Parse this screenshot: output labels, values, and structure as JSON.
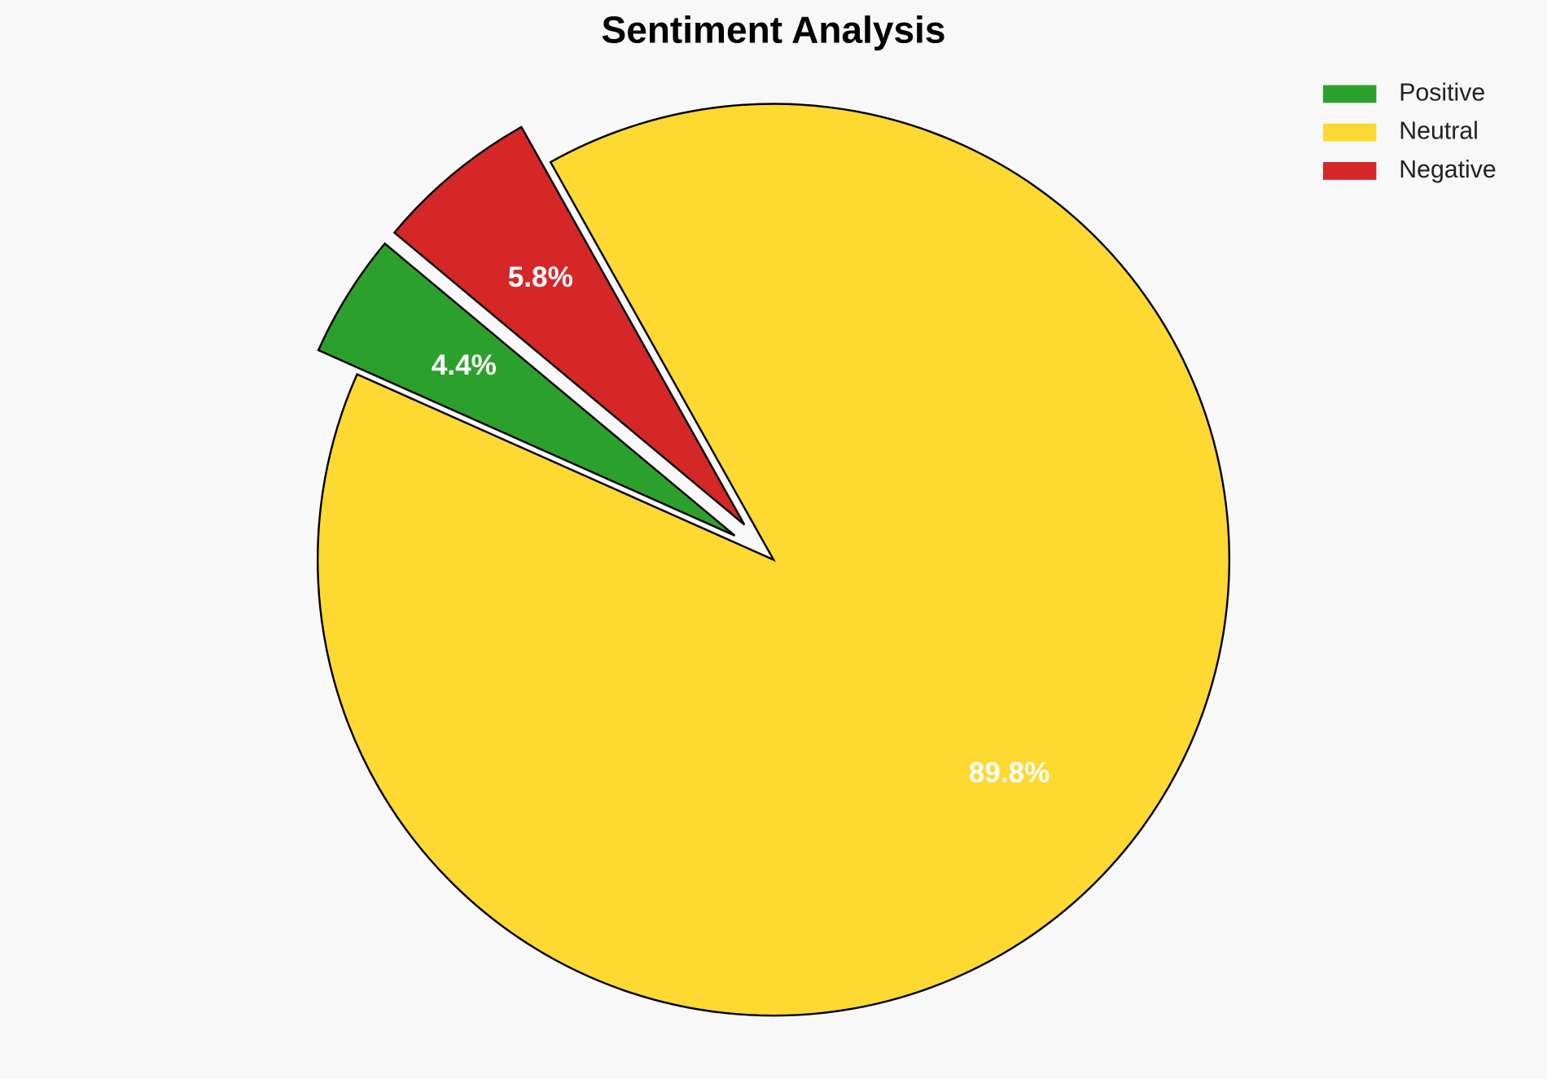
{
  "chart_data": {
    "type": "pie",
    "title": "Sentiment Analysis",
    "categories": [
      "Positive",
      "Neutral",
      "Negative"
    ],
    "values": [
      4.4,
      89.8,
      5.8
    ],
    "value_labels": [
      "4.4%",
      "89.8%",
      "5.8%"
    ],
    "colors": [
      "#2ca02c",
      "#fdd931",
      "#d62728"
    ],
    "explode": [
      0.1,
      0,
      0.1
    ],
    "legend": "upper right"
  }
}
